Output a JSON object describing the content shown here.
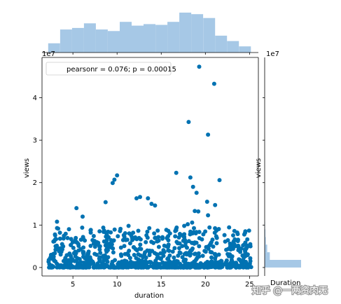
{
  "chart_data": {
    "type": "scatter",
    "xlabel": "duration",
    "ylabel": "views",
    "x_ticks": [
      5,
      10,
      15,
      20,
      25
    ],
    "y_ticks": [
      0,
      1,
      2,
      3,
      4
    ],
    "y_offset_text": "1e7",
    "xlim": [
      1.5,
      26
    ],
    "ylim": [
      -0.2,
      4.95
    ],
    "legend_text": "pearsonr = 0.076; p = 0.00015",
    "legend_position": "upper-left",
    "point_color": "#0072b2",
    "hist_color": "#a6c8e6",
    "outliers": [
      {
        "x": 19.3,
        "y": 4.73
      },
      {
        "x": 21.0,
        "y": 4.33
      },
      {
        "x": 18.1,
        "y": 3.43
      },
      {
        "x": 20.3,
        "y": 3.13
      },
      {
        "x": 16.7,
        "y": 2.23
      },
      {
        "x": 18.3,
        "y": 2.12
      },
      {
        "x": 21.6,
        "y": 2.06
      },
      {
        "x": 10.0,
        "y": 2.17
      },
      {
        "x": 9.7,
        "y": 2.07
      },
      {
        "x": 9.5,
        "y": 1.99
      },
      {
        "x": 18.6,
        "y": 1.9
      },
      {
        "x": 19.0,
        "y": 1.76
      },
      {
        "x": 13.5,
        "y": 1.63
      },
      {
        "x": 12.2,
        "y": 1.63
      },
      {
        "x": 12.6,
        "y": 1.66
      },
      {
        "x": 13.9,
        "y": 1.5
      },
      {
        "x": 14.3,
        "y": 1.46
      },
      {
        "x": 8.7,
        "y": 1.54
      },
      {
        "x": 5.4,
        "y": 1.4
      },
      {
        "x": 6.1,
        "y": 1.2
      },
      {
        "x": 20.2,
        "y": 1.55
      },
      {
        "x": 19.2,
        "y": 1.32
      },
      {
        "x": 18.8,
        "y": 1.33
      },
      {
        "x": 21.1,
        "y": 1.47
      },
      {
        "x": 20.3,
        "y": 1.23
      },
      {
        "x": 3.2,
        "y": 1.08
      },
      {
        "x": 18.0,
        "y": 1.02
      },
      {
        "x": 18.5,
        "y": 1.06
      },
      {
        "x": 17.6,
        "y": 0.98
      },
      {
        "x": 11.3,
        "y": 0.98
      },
      {
        "x": 3.0,
        "y": 0.66
      },
      {
        "x": 2.9,
        "y": 0.63
      }
    ],
    "dense_cluster": {
      "x_range": [
        2.2,
        25.2
      ],
      "y_range": [
        0.0,
        0.95
      ],
      "count": 900
    },
    "x_marginal": {
      "bin_edges": [
        2.2,
        3.55,
        4.9,
        6.25,
        7.6,
        8.95,
        10.3,
        11.65,
        13.0,
        14.35,
        15.7,
        17.05,
        18.4,
        19.75,
        21.1,
        22.45,
        23.8,
        25.15
      ],
      "counts": [
        12,
        30,
        32,
        38,
        30,
        28,
        40,
        35,
        37,
        36,
        40,
        52,
        50,
        45,
        22,
        15,
        8
      ]
    },
    "y_marginal": {
      "bin_edges": [
        0,
        0.18,
        0.36,
        0.54,
        0.72,
        0.9,
        1.08
      ],
      "counts": [
        100,
        14,
        7,
        3,
        2,
        1
      ]
    }
  },
  "watermark": "知乎 @一两资肉无"
}
